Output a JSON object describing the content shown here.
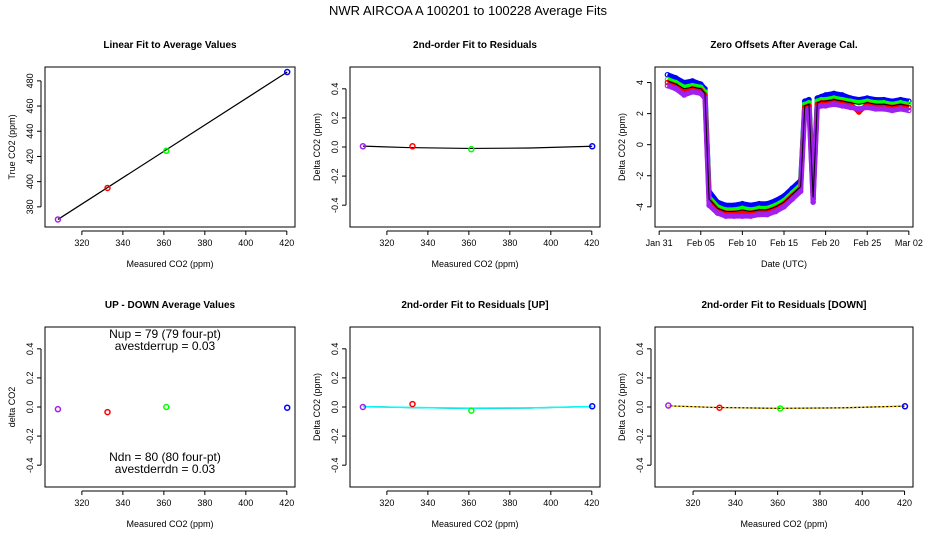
{
  "page": {
    "title": "NWR   AIRCOA A   100201 to 100228   Average Fits"
  },
  "colors": {
    "purple": "#a020f0",
    "red": "#ff0000",
    "green": "#00ff00",
    "blue": "#0000ff",
    "black": "#000000",
    "cyan": "#00ffff",
    "yellow": "#ffd700"
  },
  "chart_data": [
    {
      "id": "linear-fit",
      "type": "scatter",
      "title": "Linear Fit to Average Values",
      "xlabel": "Measured CO2 (ppm)",
      "ylabel": "True CO2 (ppm)",
      "xlim": [
        302,
        424
      ],
      "ylim": [
        364,
        491
      ],
      "xticks": [
        320,
        340,
        360,
        380,
        400,
        420
      ],
      "yticks": [
        380,
        400,
        420,
        440,
        460,
        480
      ],
      "series": [
        {
          "name": "tank1",
          "color": "#a020f0",
          "x": [
            308.3
          ],
          "y": [
            370
          ]
        },
        {
          "name": "tank2",
          "color": "#ff0000",
          "x": [
            332.5
          ],
          "y": [
            395
          ]
        },
        {
          "name": "tank3",
          "color": "#00ff00",
          "x": [
            361.2
          ],
          "y": [
            424.5
          ]
        },
        {
          "name": "tank4",
          "color": "#0000ff",
          "x": [
            420.2
          ],
          "y": [
            487
          ]
        }
      ],
      "lines": [
        {
          "name": "fit",
          "color": "#000000",
          "x": [
            308.3,
            420.2
          ],
          "y": [
            370,
            487
          ]
        }
      ]
    },
    {
      "id": "resid-fit",
      "type": "scatter",
      "title": "2nd-order Fit to Residuals",
      "xlabel": "Measured CO2 (ppm)",
      "ylabel": "Delta CO2 (ppm)",
      "xlim": [
        302,
        424
      ],
      "ylim": [
        -0.55,
        0.55
      ],
      "xticks": [
        320,
        340,
        360,
        380,
        400,
        420
      ],
      "yticks": [
        -0.4,
        -0.2,
        0.0,
        0.2,
        0.4
      ],
      "series": [
        {
          "name": "tank1",
          "color": "#a020f0",
          "x": [
            308.3
          ],
          "y": [
            0.005
          ]
        },
        {
          "name": "tank2",
          "color": "#ff0000",
          "x": [
            332.5
          ],
          "y": [
            0.005
          ]
        },
        {
          "name": "tank3",
          "color": "#00ff00",
          "x": [
            361.2
          ],
          "y": [
            -0.015
          ]
        },
        {
          "name": "tank4",
          "color": "#0000ff",
          "x": [
            420.2
          ],
          "y": [
            0.005
          ]
        }
      ],
      "lines": [
        {
          "name": "fit",
          "color": "#000000",
          "x": [
            308.3,
            330,
            360,
            390,
            420.2
          ],
          "y": [
            0.006,
            -0.004,
            -0.01,
            -0.007,
            0.005
          ]
        }
      ]
    },
    {
      "id": "zero-offsets",
      "type": "line",
      "title": "Zero Offsets After Average Cal.",
      "xlabel": "Date (UTC)",
      "ylabel": "Delta CO2 (ppm)",
      "xlim": [
        -0.5,
        30.5
      ],
      "ylim": [
        -5.3,
        5.0
      ],
      "xticks": [
        0,
        5,
        10,
        15,
        20,
        25,
        30
      ],
      "xtick_labels": [
        "Jan 31",
        "Feb 05",
        "Feb 10",
        "Feb 15",
        "Feb 20",
        "Feb 25",
        "Mar 02"
      ],
      "yticks": [
        -4,
        -2,
        0,
        2,
        4
      ],
      "series": [
        {
          "name": "blue",
          "color": "#0000ff",
          "x": [
            1,
            2,
            3,
            4,
            5,
            5.5,
            6,
            7,
            8,
            9,
            10,
            11,
            12,
            13,
            14,
            15,
            16,
            17,
            17.5,
            18,
            18.5,
            19,
            19.5,
            20,
            21,
            22,
            23,
            24,
            25,
            26,
            27,
            28,
            29,
            30
          ],
          "y": [
            4.5,
            4.3,
            4.0,
            4.1,
            3.9,
            3.6,
            -3.0,
            -3.7,
            -3.9,
            -3.9,
            -3.8,
            -3.9,
            -3.8,
            -3.8,
            -3.6,
            -3.3,
            -2.8,
            -2.3,
            2.8,
            2.9,
            -3.0,
            3.0,
            3.1,
            3.2,
            3.3,
            3.2,
            3.0,
            2.9,
            3.0,
            2.9,
            2.9,
            2.8,
            2.9,
            2.8
          ]
        },
        {
          "name": "green",
          "color": "#00ff00",
          "x": [
            1,
            2,
            3,
            4,
            5,
            5.5,
            6,
            7,
            8,
            9,
            10,
            11,
            12,
            13,
            14,
            15,
            16,
            17,
            17.5,
            18,
            18.5,
            19,
            19.5,
            20,
            21,
            22,
            23,
            24,
            25,
            26,
            27,
            28,
            29,
            30
          ],
          "y": [
            4.2,
            4.0,
            3.7,
            3.8,
            3.7,
            3.4,
            -3.4,
            -4.0,
            -4.2,
            -4.2,
            -4.1,
            -4.2,
            -4.1,
            -4.1,
            -3.9,
            -3.6,
            -3.1,
            -2.6,
            2.6,
            2.7,
            -3.3,
            2.8,
            2.9,
            2.9,
            3.0,
            2.9,
            2.8,
            2.7,
            2.8,
            2.7,
            2.7,
            2.6,
            2.7,
            2.6
          ]
        },
        {
          "name": "red",
          "color": "#ff0000",
          "x": [
            1,
            2,
            3,
            4,
            5,
            5.5,
            6,
            7,
            8,
            9,
            10,
            11,
            12,
            13,
            14,
            15,
            16,
            17,
            17.5,
            18,
            18.5,
            19,
            19.5,
            20,
            21,
            22,
            23,
            24,
            25,
            26,
            27,
            28,
            29,
            30
          ],
          "y": [
            4.0,
            3.8,
            3.4,
            3.6,
            3.5,
            3.2,
            -3.6,
            -4.2,
            -4.4,
            -4.4,
            -4.4,
            -4.4,
            -4.3,
            -4.3,
            -4.1,
            -3.8,
            -3.3,
            -2.8,
            2.4,
            2.5,
            -3.5,
            2.6,
            2.7,
            2.7,
            2.8,
            2.7,
            2.6,
            2.1,
            2.6,
            2.5,
            2.5,
            2.4,
            2.5,
            2.4
          ]
        },
        {
          "name": "purple",
          "color": "#a020f0",
          "x": [
            1,
            2,
            3,
            4,
            5,
            5.5,
            6,
            7,
            8,
            9,
            10,
            11,
            12,
            13,
            14,
            15,
            16,
            17,
            17.5,
            18,
            18.5,
            19,
            19.5,
            20,
            21,
            22,
            23,
            24,
            25,
            26,
            27,
            28,
            29,
            30
          ],
          "y": [
            3.8,
            3.6,
            3.2,
            3.4,
            3.3,
            3.0,
            -3.9,
            -4.4,
            -4.6,
            -4.6,
            -4.6,
            -4.6,
            -4.5,
            -4.5,
            -4.3,
            -4.0,
            -3.5,
            -3.0,
            2.2,
            2.3,
            -3.7,
            2.4,
            2.5,
            2.5,
            2.6,
            2.5,
            2.4,
            2.3,
            2.4,
            2.3,
            2.3,
            2.2,
            2.3,
            2.2
          ]
        }
      ],
      "lines": [
        {
          "name": "mean",
          "color": "#000000",
          "x": [
            1,
            2,
            3,
            4,
            5,
            5.5,
            6,
            7,
            8,
            9,
            10,
            11,
            12,
            13,
            14,
            15,
            16,
            17,
            17.5,
            18,
            18.5,
            19,
            19.5,
            20,
            21,
            22,
            23,
            24,
            25,
            26,
            27,
            28,
            29,
            30
          ],
          "y": [
            4.1,
            3.9,
            3.6,
            3.7,
            3.6,
            3.3,
            -3.5,
            -4.1,
            -4.3,
            -4.3,
            -4.2,
            -4.3,
            -4.2,
            -4.2,
            -4.0,
            -3.7,
            -3.2,
            -2.7,
            2.5,
            2.6,
            -3.4,
            2.7,
            2.8,
            2.8,
            2.9,
            2.8,
            2.7,
            2.6,
            2.7,
            2.6,
            2.6,
            2.5,
            2.6,
            2.5
          ]
        }
      ]
    },
    {
      "id": "up-down",
      "type": "scatter",
      "title": "UP - DOWN Average Values",
      "xlabel": "Measured CO2 (ppm)",
      "ylabel": "delta CO2",
      "xlim": [
        302,
        424
      ],
      "ylim": [
        -0.55,
        0.55
      ],
      "xticks": [
        320,
        340,
        360,
        380,
        400,
        420
      ],
      "yticks": [
        -0.4,
        -0.2,
        0.0,
        0.2,
        0.4
      ],
      "series": [
        {
          "name": "tank1",
          "color": "#a020f0",
          "x": [
            308.3
          ],
          "y": [
            -0.015
          ]
        },
        {
          "name": "tank2",
          "color": "#ff0000",
          "x": [
            332.5
          ],
          "y": [
            -0.035
          ]
        },
        {
          "name": "tank3",
          "color": "#00ff00",
          "x": [
            361.2
          ],
          "y": [
            0.0
          ]
        },
        {
          "name": "tank4",
          "color": "#0000ff",
          "x": [
            420.2
          ],
          "y": [
            -0.005
          ]
        }
      ],
      "lines": [],
      "annotations": [
        "Nup = 79 (79 four-pt)",
        "avestderrup =  0.03",
        "Ndn = 80 (80 four-pt)",
        "avestderrdn =  0.03"
      ]
    },
    {
      "id": "resid-up",
      "type": "scatter",
      "title": "2nd-order Fit to Residuals [UP]",
      "xlabel": "Measured CO2 (ppm)",
      "ylabel": "Delta CO2 (ppm)",
      "xlim": [
        302,
        424
      ],
      "ylim": [
        -0.55,
        0.55
      ],
      "xticks": [
        320,
        340,
        360,
        380,
        400,
        420
      ],
      "yticks": [
        -0.4,
        -0.2,
        0.0,
        0.2,
        0.4
      ],
      "series": [
        {
          "name": "tank1",
          "color": "#a020f0",
          "x": [
            308.3
          ],
          "y": [
            0.0
          ]
        },
        {
          "name": "tank2",
          "color": "#ff0000",
          "x": [
            332.5
          ],
          "y": [
            0.02
          ]
        },
        {
          "name": "tank3",
          "color": "#00ff00",
          "x": [
            361.2
          ],
          "y": [
            -0.025
          ]
        },
        {
          "name": "tank4",
          "color": "#0000ff",
          "x": [
            420.2
          ],
          "y": [
            0.005
          ]
        }
      ],
      "lines": [
        {
          "name": "fit",
          "color": "#000000",
          "x": [
            308.3,
            330,
            360,
            390,
            420.2
          ],
          "y": [
            0.004,
            -0.004,
            -0.01,
            -0.007,
            0.004
          ]
        },
        {
          "name": "fit-up",
          "color": "#00ffff",
          "x": [
            308.3,
            330,
            360,
            390,
            420.2
          ],
          "y": [
            0.002,
            -0.003,
            -0.008,
            -0.006,
            0.003
          ]
        }
      ]
    },
    {
      "id": "resid-down",
      "type": "scatter",
      "title": "2nd-order Fit to Residuals [DOWN]",
      "xlabel": "Measured CO2 (ppm)",
      "ylabel": "Delta CO2 (ppm)",
      "xlim": [
        302,
        424
      ],
      "ylim": [
        -0.55,
        0.55
      ],
      "xticks": [
        320,
        340,
        360,
        380,
        400,
        420
      ],
      "yticks": [
        -0.4,
        -0.2,
        0.0,
        0.2,
        0.4
      ],
      "series": [
        {
          "name": "tank1",
          "color": "#a020f0",
          "x": [
            308.3
          ],
          "y": [
            0.01
          ]
        },
        {
          "name": "tank2",
          "color": "#ff0000",
          "x": [
            332.5
          ],
          "y": [
            -0.005
          ]
        },
        {
          "name": "tank3",
          "color": "#00ff00",
          "x": [
            361.2
          ],
          "y": [
            -0.01
          ]
        },
        {
          "name": "tank4",
          "color": "#0000ff",
          "x": [
            420.2
          ],
          "y": [
            0.005
          ]
        }
      ],
      "lines": [
        {
          "name": "fit",
          "color": "#000000",
          "x": [
            308.3,
            330,
            360,
            390,
            420.2
          ],
          "y": [
            0.008,
            -0.003,
            -0.009,
            -0.006,
            0.006
          ]
        },
        {
          "name": "fit-down",
          "color": "#ffd700",
          "x": [
            308.3,
            330,
            360,
            390,
            420.2
          ],
          "y": [
            0.007,
            -0.003,
            -0.008,
            -0.005,
            0.005
          ],
          "dashed": true
        }
      ]
    }
  ]
}
